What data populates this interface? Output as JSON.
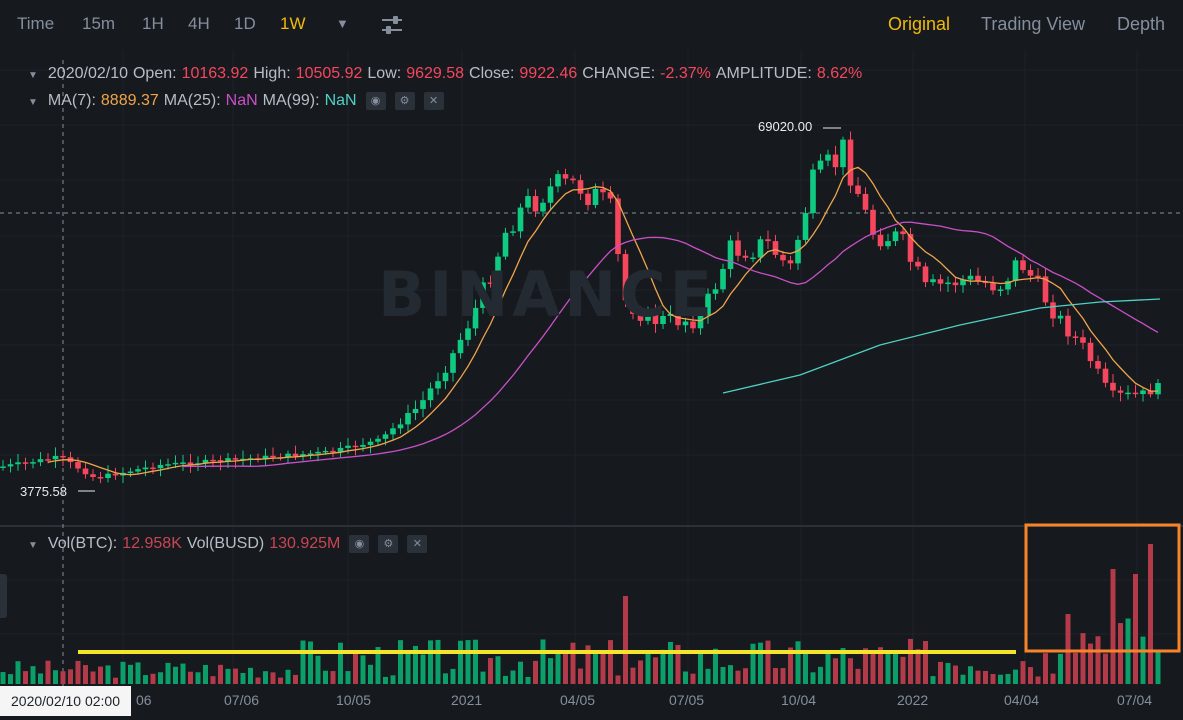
{
  "toolbar": {
    "intervals": [
      "Time",
      "15m",
      "1H",
      "4H",
      "1D",
      "1W"
    ],
    "active_interval": "1W",
    "views": [
      "Original",
      "Trading View",
      "Depth"
    ],
    "active_view": "Original"
  },
  "ohlc": {
    "date": "2020/02/10",
    "open_label": "Open:",
    "open": "10163.92",
    "high_label": "High:",
    "high": "10505.92",
    "low_label": "Low:",
    "low": "9629.58",
    "close_label": "Close:",
    "close": "9922.46",
    "change_label": "CHANGE:",
    "change": "-2.37%",
    "amplitude_label": "AMPLITUDE:",
    "amplitude": "8.62%"
  },
  "ma": {
    "ma7_label": "MA(7):",
    "ma7": "8889.37",
    "ma25_label": "MA(25):",
    "ma25": "NaN",
    "ma99_label": "MA(99):",
    "ma99": "NaN"
  },
  "volume": {
    "btc_label": "Vol(BTC):",
    "btc": "12.958K",
    "busd_label": "Vol(BUSD)",
    "busd": "130.925M"
  },
  "markers": {
    "high": "69020.00",
    "low": "3775.58"
  },
  "watermark": "BINANCE",
  "crosshair_date": "2020/02/10 02:00",
  "x_ticks": [
    "06",
    "07/06",
    "10/05",
    "2021",
    "04/05",
    "07/05",
    "10/04",
    "2022",
    "04/04",
    "07/04"
  ],
  "colors": {
    "up": "#0ecb81",
    "down": "#f6465d",
    "ma7": "#f0a44b",
    "ma25": "#c850c8",
    "ma99": "#4fd1c5",
    "highlight_line": "#f5e52a",
    "highlight_box": "#f7842a",
    "accent": "#f0b90b"
  }
}
